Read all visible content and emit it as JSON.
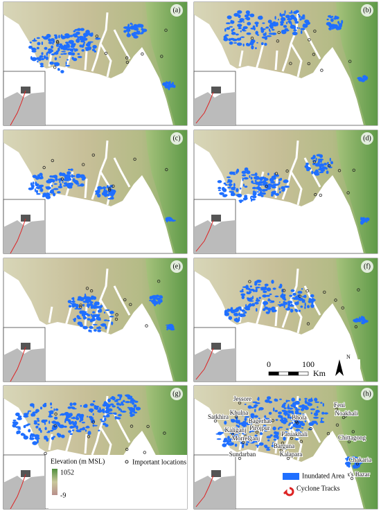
{
  "panels": [
    {
      "label": "(a)"
    },
    {
      "label": "(b)"
    },
    {
      "label": "(c)"
    },
    {
      "label": "(d)"
    },
    {
      "label": "(e)"
    },
    {
      "label": "(f)"
    },
    {
      "label": "(g)"
    },
    {
      "label": "(h)"
    }
  ],
  "legend": {
    "elevation_title": "Elevation (m MSL)",
    "elevation_max": "1052",
    "elevation_min": "-9",
    "locations": "Important locations",
    "inundated": "Inundated Area",
    "cyclone": "Cyclone Tracks"
  },
  "scale_bar": {
    "zero": "0",
    "distance": "100",
    "unit": "Km",
    "north": "N"
  },
  "places": [
    "Jessore",
    "Satkhira",
    "Khulna",
    "Bagerhat",
    "Pirojpur",
    "Kaliganj",
    "Morrelganj",
    "Patuakhali",
    "Barguna",
    "Kalapara",
    "Sundarban",
    "Bhola",
    "Feni",
    "Noakhali",
    "Chittagong",
    "Chakaria",
    "Cox's Bazar"
  ]
}
